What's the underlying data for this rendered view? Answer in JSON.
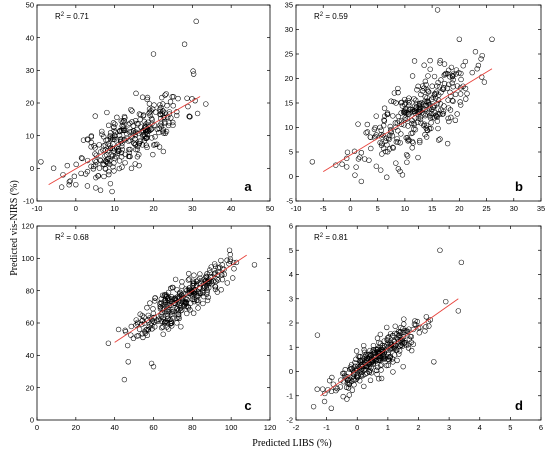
{
  "figure": {
    "ylabel": "Predicted vis-NIRS (%)",
    "xlabel": "Predicted LIBS (%)"
  },
  "chart_data": [
    {
      "type": "scatter",
      "panel": "a",
      "r2_prefix": "R",
      "r2_exp": "2",
      "r2_value": " = 0.71",
      "xlim": [
        -10,
        50
      ],
      "ylim": [
        -10,
        50
      ],
      "xticks": [
        -10,
        0,
        10,
        20,
        30,
        40,
        50
      ],
      "yticks": [
        -10,
        0,
        10,
        20,
        30,
        40,
        50
      ],
      "fit": {
        "x": [
          -7,
          32
        ],
        "y": [
          -5,
          22
        ]
      },
      "seed": 11,
      "n": 320,
      "x_mean": 14,
      "x_sd": 7,
      "slope": 0.69,
      "intercept": 0,
      "noise": 4.5,
      "extra_points": [
        [
          -9,
          2
        ],
        [
          5,
          16
        ],
        [
          31,
          45
        ],
        [
          20,
          35
        ],
        [
          28,
          38
        ],
        [
          3,
          -1
        ]
      ]
    },
    {
      "type": "scatter",
      "panel": "b",
      "r2_prefix": "R",
      "r2_exp": "2",
      "r2_value": " = 0.59",
      "xlim": [
        -10,
        35
      ],
      "ylim": [
        -5,
        35
      ],
      "xticks": [
        -10,
        -5,
        0,
        5,
        10,
        15,
        20,
        25,
        30,
        35
      ],
      "yticks": [
        -5,
        0,
        5,
        10,
        15,
        20,
        25,
        30,
        35
      ],
      "fit": {
        "x": [
          -5,
          26
        ],
        "y": [
          1,
          22
        ]
      },
      "seed": 23,
      "n": 320,
      "x_mean": 12,
      "x_sd": 5,
      "slope": 0.68,
      "intercept": 4.5,
      "noise": 3.6,
      "extra_points": [
        [
          -7,
          3
        ],
        [
          16,
          34
        ],
        [
          20,
          28
        ],
        [
          26,
          28
        ],
        [
          2,
          -1
        ],
        [
          24,
          24
        ]
      ]
    },
    {
      "type": "scatter",
      "panel": "c",
      "r2_prefix": "R",
      "r2_exp": "2",
      "r2_value": " = 0.68",
      "xlim": [
        0,
        120
      ],
      "ylim": [
        0,
        120
      ],
      "xticks": [
        0,
        20,
        40,
        60,
        80,
        100,
        120
      ],
      "yticks": [
        0,
        20,
        40,
        60,
        80,
        100,
        120
      ],
      "fit": {
        "x": [
          40,
          108
        ],
        "y": [
          48,
          102
        ]
      },
      "seed": 37,
      "n": 320,
      "x_mean": 74,
      "x_sd": 12,
      "slope": 0.79,
      "intercept": 16,
      "noise": 6,
      "extra_points": [
        [
          45,
          25
        ],
        [
          47,
          36
        ],
        [
          60,
          33
        ],
        [
          59,
          35
        ],
        [
          112,
          96
        ],
        [
          42,
          56
        ]
      ]
    },
    {
      "type": "scatter",
      "panel": "d",
      "r2_prefix": "R",
      "r2_exp": "2",
      "r2_value": " = 0.81",
      "xlim": [
        -2,
        6
      ],
      "ylim": [
        -2,
        6
      ],
      "xticks": [
        -2,
        -1,
        0,
        1,
        2,
        3,
        4,
        5,
        6
      ],
      "yticks": [
        -2,
        -1,
        0,
        1,
        2,
        3,
        4,
        5,
        6
      ],
      "fit": {
        "x": [
          -1.2,
          3.3
        ],
        "y": [
          -1,
          3
        ]
      },
      "seed": 53,
      "n": 320,
      "x_mean": 0.7,
      "x_sd": 0.8,
      "slope": 0.89,
      "intercept": 0,
      "noise": 0.35,
      "extra_points": [
        [
          -1.3,
          1.5
        ],
        [
          2.7,
          5
        ],
        [
          3.4,
          4.5
        ],
        [
          3.3,
          2.5
        ],
        [
          2.5,
          0.4
        ],
        [
          1.5,
          0.2
        ]
      ]
    }
  ]
}
